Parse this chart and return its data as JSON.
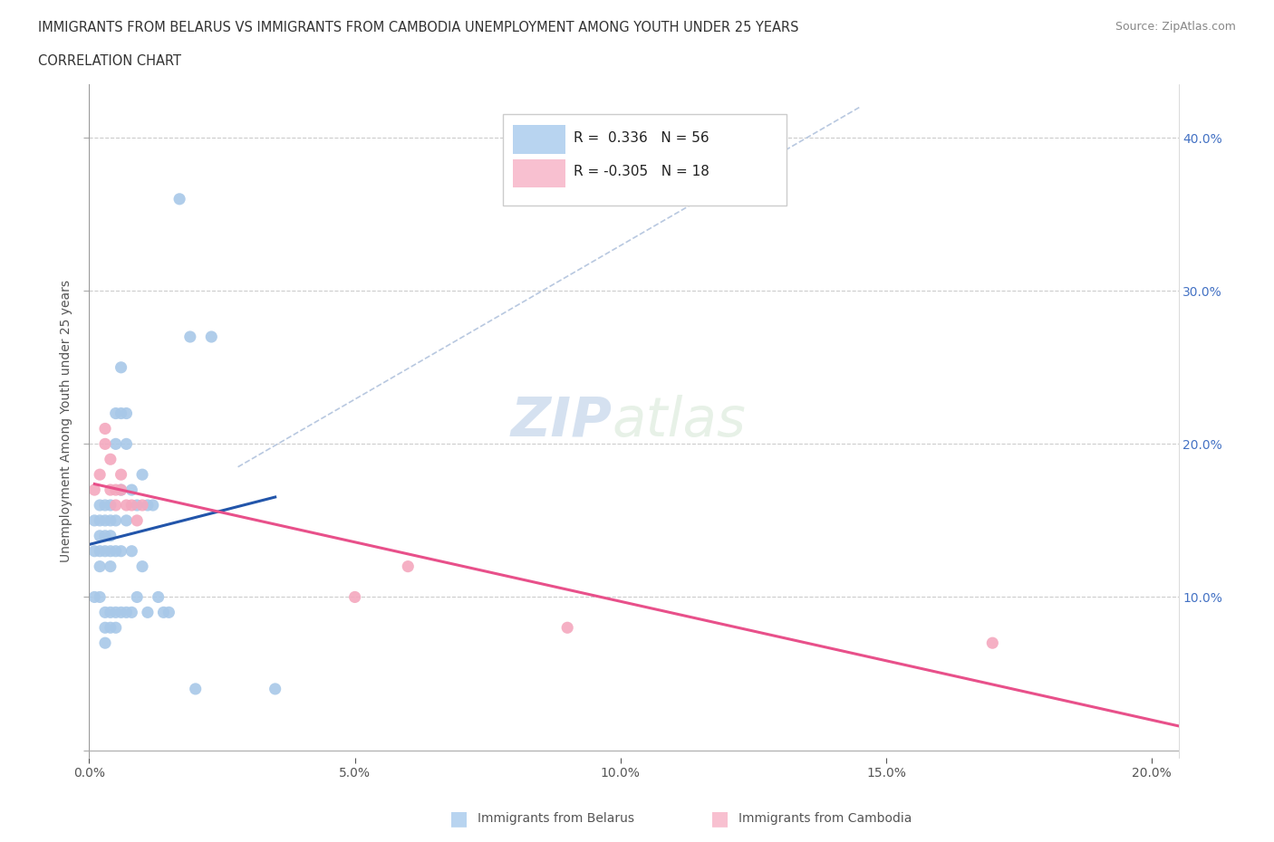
{
  "title_line1": "IMMIGRANTS FROM BELARUS VS IMMIGRANTS FROM CAMBODIA UNEMPLOYMENT AMONG YOUTH UNDER 25 YEARS",
  "title_line2": "CORRELATION CHART",
  "source": "Source: ZipAtlas.com",
  "ylabel": "Unemployment Among Youth under 25 years",
  "watermark_zip": "ZIP",
  "watermark_atlas": "atlas",
  "xlim": [
    0.0,
    0.205
  ],
  "ylim": [
    -0.005,
    0.435
  ],
  "x_ticks": [
    0.0,
    0.05,
    0.1,
    0.15,
    0.2
  ],
  "x_tick_labels": [
    "0.0%",
    "5.0%",
    "10.0%",
    "15.0%",
    "20.0%"
  ],
  "y_ticks": [
    0.0,
    0.1,
    0.2,
    0.3,
    0.4
  ],
  "y_tick_labels_right": [
    "",
    "10.0%",
    "20.0%",
    "30.0%",
    "40.0%"
  ],
  "belarus_color": "#a8c8e8",
  "cambodia_color": "#f4a8be",
  "belarus_line_color": "#2255aa",
  "cambodia_line_color": "#e8508a",
  "diag_line_color": "#b8c8e0",
  "legend_box_color_belarus": "#b8d4f0",
  "legend_box_color_cambodia": "#f8c0d0",
  "R_belarus": 0.336,
  "N_belarus": 56,
  "R_cambodia": -0.305,
  "N_cambodia": 18,
  "belarus_x": [
    0.001,
    0.001,
    0.001,
    0.002,
    0.002,
    0.002,
    0.002,
    0.002,
    0.002,
    0.003,
    0.003,
    0.003,
    0.003,
    0.003,
    0.003,
    0.003,
    0.004,
    0.004,
    0.004,
    0.004,
    0.004,
    0.004,
    0.004,
    0.005,
    0.005,
    0.005,
    0.005,
    0.005,
    0.005,
    0.006,
    0.006,
    0.006,
    0.006,
    0.006,
    0.007,
    0.007,
    0.007,
    0.007,
    0.008,
    0.008,
    0.008,
    0.009,
    0.009,
    0.01,
    0.01,
    0.011,
    0.011,
    0.012,
    0.013,
    0.014,
    0.015,
    0.017,
    0.019,
    0.02,
    0.023,
    0.035
  ],
  "belarus_y": [
    0.15,
    0.13,
    0.1,
    0.16,
    0.15,
    0.14,
    0.13,
    0.12,
    0.1,
    0.16,
    0.15,
    0.14,
    0.13,
    0.09,
    0.08,
    0.07,
    0.16,
    0.15,
    0.14,
    0.13,
    0.12,
    0.09,
    0.08,
    0.22,
    0.2,
    0.15,
    0.13,
    0.09,
    0.08,
    0.25,
    0.22,
    0.17,
    0.13,
    0.09,
    0.22,
    0.2,
    0.15,
    0.09,
    0.17,
    0.13,
    0.09,
    0.16,
    0.1,
    0.18,
    0.12,
    0.16,
    0.09,
    0.16,
    0.1,
    0.09,
    0.09,
    0.36,
    0.27,
    0.04,
    0.27,
    0.04
  ],
  "cambodia_x": [
    0.001,
    0.002,
    0.003,
    0.003,
    0.004,
    0.004,
    0.005,
    0.005,
    0.006,
    0.006,
    0.007,
    0.008,
    0.009,
    0.01,
    0.05,
    0.06,
    0.09,
    0.17
  ],
  "cambodia_y": [
    0.17,
    0.18,
    0.21,
    0.2,
    0.19,
    0.17,
    0.17,
    0.16,
    0.18,
    0.17,
    0.16,
    0.16,
    0.15,
    0.16,
    0.1,
    0.12,
    0.08,
    0.07
  ],
  "diag_line_x": [
    0.028,
    0.145
  ],
  "diag_line_y": [
    0.185,
    0.42
  ]
}
